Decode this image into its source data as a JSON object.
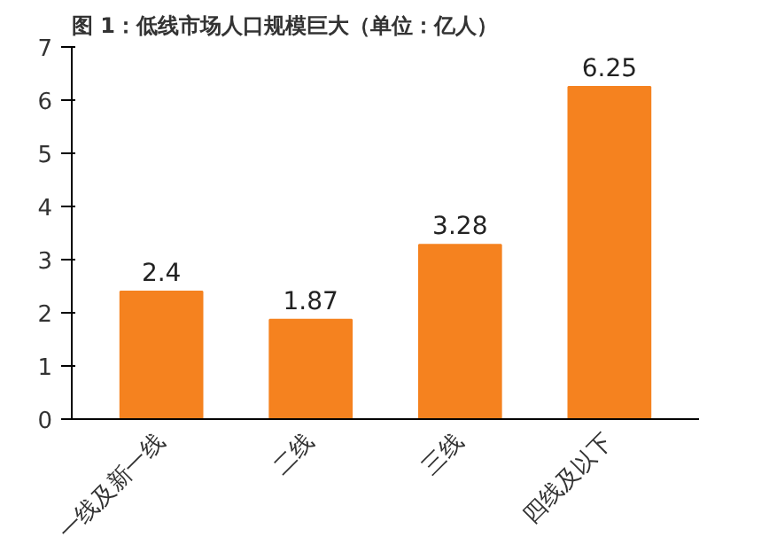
{
  "chart_data": {
    "type": "bar",
    "title": "图 1：低线市场人口规模巨大（单位：亿人）",
    "categories": [
      "一线及新一线",
      "二线",
      "三线",
      "四线及以下"
    ],
    "values": [
      2.4,
      1.87,
      3.28,
      6.25
    ],
    "color": "#f5821f",
    "ylim": [
      0,
      7
    ],
    "yticks": [
      0,
      1,
      2,
      3,
      4,
      5,
      6,
      7
    ],
    "grid": false,
    "data_labels": true
  }
}
